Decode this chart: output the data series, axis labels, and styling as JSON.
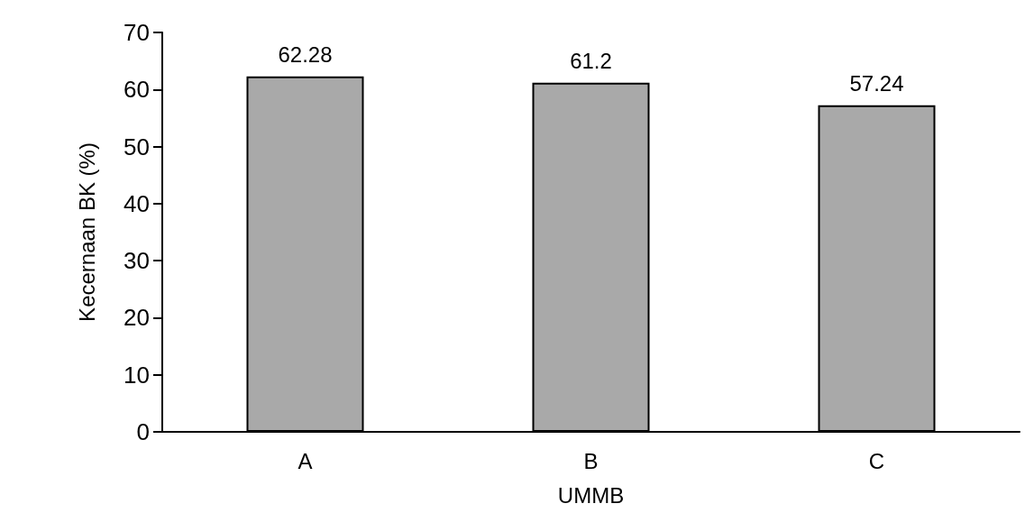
{
  "chart_data": {
    "type": "bar",
    "xlabel": "UMMB",
    "ylabel": "Kecernaan BK (%)",
    "categories": [
      "A",
      "B",
      "C"
    ],
    "values": [
      62.28,
      61.2,
      57.24
    ],
    "color": "#a9a9a9",
    "ylim": [
      0,
      70
    ],
    "yticks": [
      0,
      10,
      20,
      30,
      40,
      50,
      60,
      70
    ],
    "grid": false,
    "data_labels": true
  }
}
